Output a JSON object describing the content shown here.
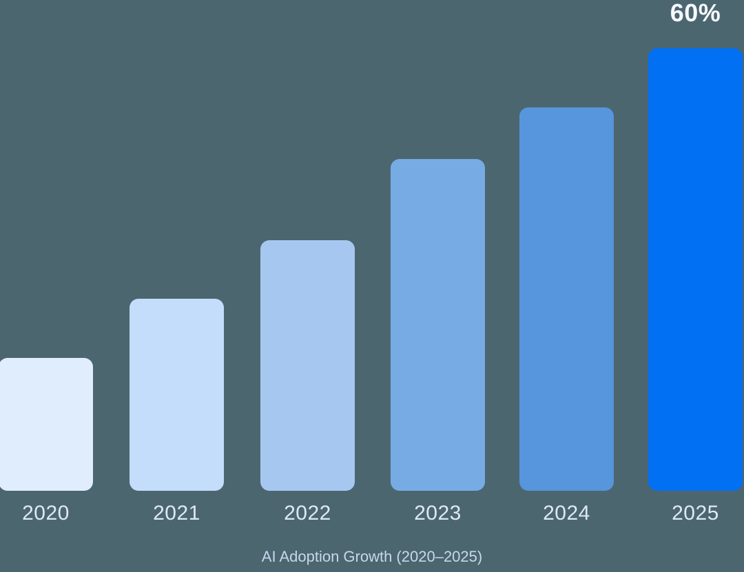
{
  "chart_data": {
    "type": "bar",
    "title": "AI Adoption Growth (2020–2025)",
    "categories": [
      "2020",
      "2021",
      "2022",
      "2023",
      "2024",
      "2025"
    ],
    "values": [
      18,
      26,
      34,
      45,
      52,
      60
    ],
    "unit": "%",
    "data_labels": [
      "",
      "",
      "",
      "",
      "",
      "60%"
    ],
    "bar_colors": [
      "#e0edfc",
      "#c3ddfa",
      "#a6c8f0",
      "#77abe4",
      "#5795dc",
      "#0270f2"
    ],
    "xlabel": "",
    "ylabel": "",
    "ylim": [
      0,
      60
    ],
    "grid": false,
    "legend": false,
    "axes_visible": false
  },
  "colors": {
    "background": "#4c6670",
    "tick_label": "#dee9f5",
    "caption": "#c6d7ed",
    "annotation": "#f6f9fd"
  }
}
